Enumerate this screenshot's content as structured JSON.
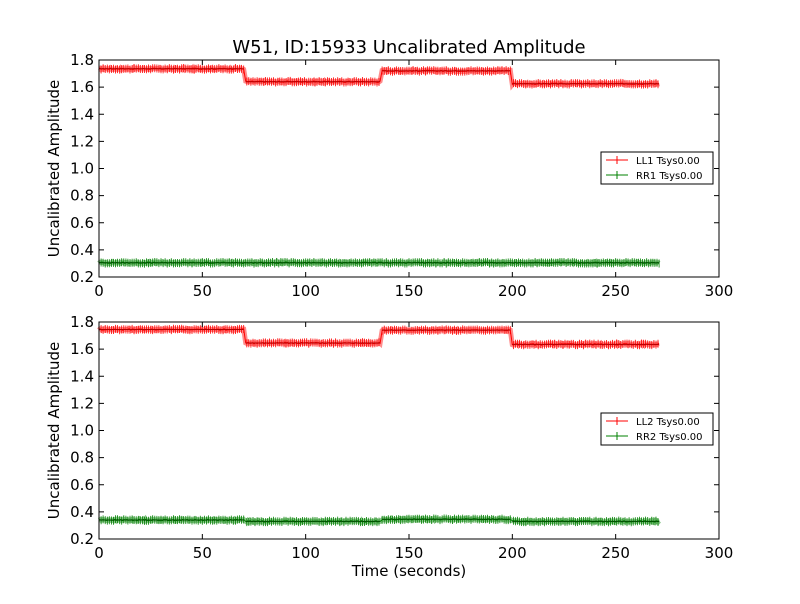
{
  "figure": {
    "title": "W51, ID:15933 Uncalibrated Amplitude",
    "xlabel": "Time (seconds)"
  },
  "chart_data": [
    {
      "type": "line",
      "title": "W51, ID:15933 Uncalibrated Amplitude",
      "xlabel": "",
      "ylabel": "Uncalibrated Amplitude",
      "xlim": [
        0,
        300
      ],
      "ylim": [
        0.2,
        1.8
      ],
      "xticks": [
        0,
        50,
        100,
        150,
        200,
        250,
        300
      ],
      "xtick_labels": [
        "0",
        "50",
        "100",
        "150",
        "200",
        "250",
        "300"
      ],
      "yticks": [
        0.2,
        0.4,
        0.6,
        0.8,
        1.0,
        1.2,
        1.4,
        1.6,
        1.8
      ],
      "ytick_labels": [
        "0.2",
        "0.4",
        "0.6",
        "0.8",
        "1.0",
        "1.2",
        "1.4",
        "1.6",
        "1.8"
      ],
      "grid": false,
      "legend_position": "right",
      "series": [
        {
          "name": "LL1 Tsys0.00",
          "color": "#ff0000",
          "segments": [
            {
              "x": [
                0,
                70
              ],
              "value": 1.735
            },
            {
              "x": [
                71,
                136
              ],
              "value": 1.64
            },
            {
              "x": [
                137,
                199
              ],
              "value": 1.72
            },
            {
              "x": [
                200,
                271
              ],
              "value": 1.625
            }
          ]
        },
        {
          "name": "RR1 Tsys0.00",
          "color": "#008000",
          "segments": [
            {
              "x": [
                0,
                271
              ],
              "value": 0.305
            }
          ]
        }
      ]
    },
    {
      "type": "line",
      "title": "",
      "xlabel": "Time (seconds)",
      "ylabel": "Uncalibrated Amplitude",
      "xlim": [
        0,
        300
      ],
      "ylim": [
        0.2,
        1.8
      ],
      "xticks": [
        0,
        50,
        100,
        150,
        200,
        250,
        300
      ],
      "xtick_labels": [
        "0",
        "50",
        "100",
        "150",
        "200",
        "250",
        "300"
      ],
      "yticks": [
        0.2,
        0.4,
        0.6,
        0.8,
        1.0,
        1.2,
        1.4,
        1.6,
        1.8
      ],
      "ytick_labels": [
        "0.2",
        "0.4",
        "0.6",
        "0.8",
        "1.0",
        "1.2",
        "1.4",
        "1.6",
        "1.8"
      ],
      "grid": false,
      "legend_position": "right",
      "series": [
        {
          "name": "LL2 Tsys0.00",
          "color": "#ff0000",
          "segments": [
            {
              "x": [
                0,
                70
              ],
              "value": 1.745
            },
            {
              "x": [
                71,
                136
              ],
              "value": 1.645
            },
            {
              "x": [
                137,
                199
              ],
              "value": 1.74
            },
            {
              "x": [
                200,
                271
              ],
              "value": 1.635
            }
          ]
        },
        {
          "name": "RR2 Tsys0.00",
          "color": "#008000",
          "segments": [
            {
              "x": [
                0,
                70
              ],
              "value": 0.34
            },
            {
              "x": [
                71,
                136
              ],
              "value": 0.33
            },
            {
              "x": [
                137,
                199
              ],
              "value": 0.345
            },
            {
              "x": [
                200,
                271
              ],
              "value": 0.33
            }
          ]
        }
      ]
    }
  ]
}
